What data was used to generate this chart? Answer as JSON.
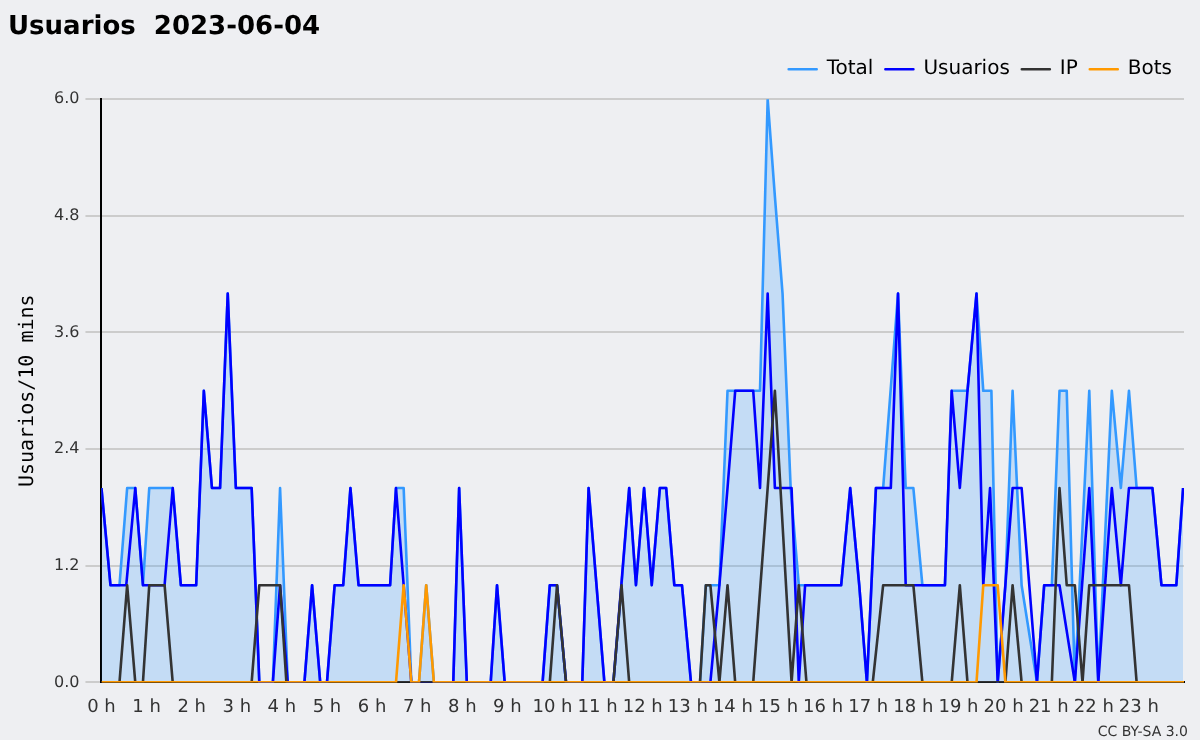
{
  "chart_data": {
    "type": "line",
    "title": "Usuarios  2023-06-04",
    "ylabel": "Usuarios/10 mins",
    "xlim": [
      0,
      24
    ],
    "xticks": [
      {
        "value": 0,
        "label": "0 h"
      },
      {
        "value": 1,
        "label": "1 h"
      },
      {
        "value": 2,
        "label": "2 h"
      },
      {
        "value": 3,
        "label": "3 h"
      },
      {
        "value": 4,
        "label": "4 h"
      },
      {
        "value": 5,
        "label": "5 h"
      },
      {
        "value": 6,
        "label": "6 h"
      },
      {
        "value": 7,
        "label": "7 h"
      },
      {
        "value": 8,
        "label": "8 h"
      },
      {
        "value": 9,
        "label": "9 h"
      },
      {
        "value": 10,
        "label": "10 h"
      },
      {
        "value": 11,
        "label": "11 h"
      },
      {
        "value": 12,
        "label": "12 h"
      },
      {
        "value": 13,
        "label": "13 h"
      },
      {
        "value": 14,
        "label": "14 h"
      },
      {
        "value": 15,
        "label": "15 h"
      },
      {
        "value": 16,
        "label": "16 h"
      },
      {
        "value": 17,
        "label": "17 h"
      },
      {
        "value": 18,
        "label": "18 h"
      },
      {
        "value": 19,
        "label": "19 h"
      },
      {
        "value": 20,
        "label": "20 h"
      },
      {
        "value": 21,
        "label": "21 h"
      },
      {
        "value": 22,
        "label": "22 h"
      },
      {
        "value": 23,
        "label": "23 h"
      }
    ],
    "ylim": [
      0,
      6
    ],
    "yticks": [
      {
        "value": 0,
        "label": "0.0"
      },
      {
        "value": 1.2,
        "label": "1.2"
      },
      {
        "value": 2.4,
        "label": "2.4"
      },
      {
        "value": 3.6,
        "label": "3.6"
      },
      {
        "value": 4.8,
        "label": "4.8"
      },
      {
        "value": 6,
        "label": "6.0"
      }
    ],
    "grid": "y",
    "legend": "top right",
    "marker": "none",
    "line_style": "solid",
    "annotations": [
      "CC BY-SA 3.0"
    ],
    "series": [
      {
        "name": "Total",
        "type": "area",
        "color": "#3399ff",
        "x": [
          0,
          0.2,
          0.4,
          0.57,
          0.75,
          0.92,
          1.06,
          1.58,
          1.76,
          2.1,
          2.27,
          2.45,
          2.63,
          2.8,
          2.98,
          3.33,
          3.5,
          3.8,
          3.96,
          4.13,
          4.5,
          4.67,
          4.85,
          5.0,
          5.17,
          5.36,
          5.52,
          5.7,
          6.4,
          6.53,
          6.7,
          6.87,
          7.04,
          7.2,
          7.37,
          7.8,
          7.93,
          8.1,
          8.63,
          8.77,
          8.94,
          9.78,
          9.94,
          10.1,
          10.3,
          10.66,
          10.8,
          11.15,
          11.35,
          11.53,
          11.7,
          11.85,
          12.03,
          12.2,
          12.38,
          12.52,
          12.7,
          12.87,
          13.07,
          13.27,
          13.4,
          13.7,
          13.88,
          14.6,
          14.77,
          14.93,
          15.1,
          15.28,
          15.46,
          16.4,
          16.6,
          16.8,
          16.97,
          17.17,
          17.33,
          17.66,
          17.83,
          18.0,
          18.2,
          18.7,
          18.85,
          19.2,
          19.4,
          19.55,
          19.73,
          19.87,
          20.04,
          20.2,
          20.4,
          20.74,
          20.9,
          21.07,
          21.24,
          21.4,
          21.58,
          21.9,
          22.1,
          22.4,
          22.6,
          22.78,
          22.95,
          23.3,
          23.5,
          23.83,
          23.98
        ],
        "values": [
          2,
          1,
          1,
          2,
          2,
          1,
          2,
          2,
          1,
          1,
          3,
          2,
          2,
          4,
          2,
          2,
          0,
          0,
          2,
          0,
          0,
          1,
          0,
          0,
          1,
          1,
          2,
          1,
          1,
          2,
          2,
          0,
          0,
          1,
          0,
          0,
          2,
          0,
          0,
          1,
          0,
          0,
          1,
          1,
          0,
          0,
          2,
          0,
          0,
          1,
          2,
          1,
          2,
          1,
          2,
          2,
          1,
          1,
          0,
          0,
          1,
          1,
          3,
          3,
          6,
          5,
          4,
          2,
          1,
          1,
          2,
          1,
          0,
          2,
          2,
          4,
          2,
          2,
          1,
          1,
          3,
          3,
          4,
          3,
          3,
          0,
          1,
          3,
          1,
          0,
          1,
          1,
          3,
          3,
          0,
          3,
          0,
          3,
          2,
          3,
          2,
          2,
          1,
          1,
          2
        ]
      },
      {
        "name": "Usuarios",
        "color": "#0000ff",
        "x": [
          0,
          0.2,
          0.55,
          0.75,
          0.92,
          1.4,
          1.58,
          1.76,
          2.1,
          2.27,
          2.45,
          2.63,
          2.8,
          2.98,
          3.33,
          3.5,
          3.8,
          3.96,
          4.13,
          4.5,
          4.67,
          4.85,
          5.0,
          5.17,
          5.36,
          5.52,
          5.7,
          6.4,
          6.53,
          6.7,
          6.87,
          7.8,
          7.93,
          8.1,
          8.63,
          8.77,
          8.94,
          9.78,
          9.94,
          10.1,
          10.3,
          10.66,
          10.8,
          11.15,
          11.35,
          11.7,
          11.85,
          12.03,
          12.2,
          12.38,
          12.52,
          12.7,
          12.87,
          13.07,
          13.5,
          13.7,
          13.88,
          14.05,
          14.45,
          14.6,
          14.77,
          14.93,
          15.3,
          15.46,
          15.6,
          16.4,
          16.6,
          16.8,
          16.97,
          17.17,
          17.5,
          17.66,
          17.83,
          18.7,
          18.85,
          19.03,
          19.2,
          19.4,
          19.55,
          19.7,
          19.87,
          20.04,
          20.2,
          20.4,
          20.57,
          20.74,
          20.9,
          21.24,
          21.58,
          21.9,
          22.1,
          22.4,
          22.6,
          22.78,
          23.3,
          23.5,
          23.83,
          23.98
        ],
        "values": [
          2,
          1,
          1,
          2,
          1,
          1,
          2,
          1,
          1,
          3,
          2,
          2,
          4,
          2,
          2,
          0,
          0,
          1,
          0,
          0,
          1,
          0,
          0,
          1,
          1,
          2,
          1,
          1,
          2,
          1,
          0,
          0,
          2,
          0,
          0,
          1,
          0,
          0,
          1,
          1,
          0,
          0,
          2,
          0,
          0,
          2,
          1,
          2,
          1,
          2,
          2,
          1,
          1,
          0,
          0,
          1,
          2,
          3,
          3,
          2,
          4,
          2,
          2,
          0,
          1,
          1,
          2,
          1,
          0,
          2,
          2,
          4,
          1,
          1,
          3,
          2,
          3,
          4,
          1,
          2,
          0,
          1,
          2,
          2,
          1,
          0,
          1,
          1,
          0,
          2,
          0,
          2,
          1,
          2,
          2,
          1,
          1,
          2
        ]
      },
      {
        "name": "IP",
        "color": "#333333",
        "x": [
          0,
          0.4,
          0.57,
          0.75,
          0.92,
          1.06,
          1.4,
          1.58,
          3.33,
          3.5,
          3.96,
          4.1,
          9.94,
          10.1,
          10.3,
          11.35,
          11.53,
          11.7,
          13.27,
          13.4,
          13.5,
          13.7,
          13.88,
          14.05,
          14.45,
          14.93,
          15.3,
          15.46,
          15.63,
          17.1,
          17.33,
          18.0,
          18.2,
          18.85,
          19.03,
          19.2,
          20.04,
          20.2,
          20.4,
          21.07,
          21.24,
          21.4,
          21.58,
          21.75,
          21.9,
          22.78,
          22.95,
          24
        ],
        "values": [
          0,
          0,
          1,
          0,
          0,
          1,
          1,
          0,
          0,
          1,
          1,
          0,
          0,
          1,
          0,
          0,
          1,
          0,
          0,
          1,
          1,
          0,
          1,
          0,
          0,
          3,
          0,
          1,
          0,
          0,
          1,
          1,
          0,
          0,
          1,
          0,
          0,
          1,
          0,
          0,
          2,
          1,
          1,
          0,
          1,
          1,
          0,
          0
        ]
      },
      {
        "name": "Bots",
        "color": "#ff9900",
        "x": [
          0,
          6.53,
          6.7,
          6.87,
          7.04,
          7.2,
          7.37,
          19.4,
          19.55,
          19.87,
          20.04,
          24
        ],
        "values": [
          0,
          0,
          1,
          0,
          0,
          1,
          0,
          0,
          1,
          1,
          0,
          0
        ]
      }
    ]
  }
}
